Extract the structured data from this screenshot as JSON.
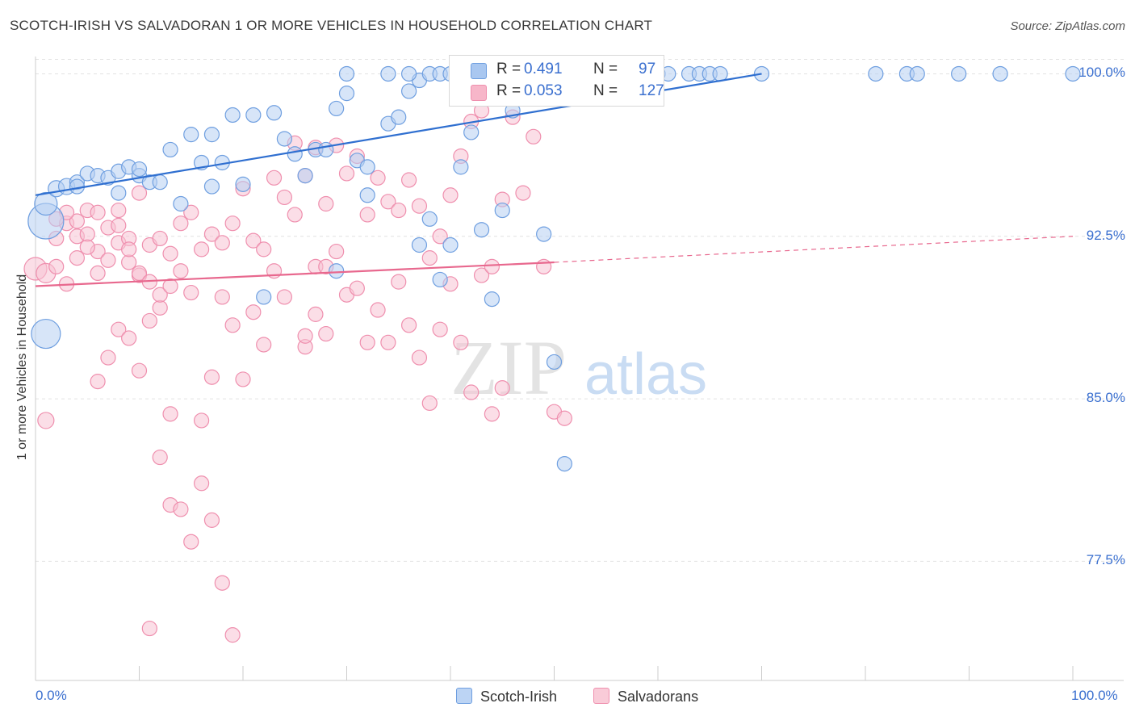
{
  "title": "SCOTCH-IRISH VS SALVADORAN 1 OR MORE VEHICLES IN HOUSEHOLD CORRELATION CHART",
  "source": "Source: ZipAtlas.com",
  "watermark": {
    "zip": "ZIP",
    "atlas": "atlas"
  },
  "legend": {
    "rows": [
      {
        "r_label": "R =",
        "r_value": "0.491",
        "n_label": "N =",
        "n_value": "97",
        "color": "#a9c7f0"
      },
      {
        "r_label": "R =",
        "r_value": "0.053",
        "n_label": "N =",
        "n_value": "127",
        "color": "#f7b6c9"
      }
    ],
    "series": [
      "Scotch-Irish",
      "Salvadorans"
    ]
  },
  "chart_data": {
    "type": "scatter",
    "title": "SCOTCH-IRISH VS SALVADORAN 1 OR MORE VEHICLES IN HOUSEHOLD CORRELATION CHART",
    "xlabel": "",
    "ylabel": "1 or more Vehicles in Household",
    "xlim": [
      0,
      100
    ],
    "ylim": [
      72.0,
      100.8
    ],
    "x_tick_labels": [
      "0.0%",
      "100.0%"
    ],
    "y_ticks": [
      77.5,
      85.0,
      92.5,
      100.0
    ],
    "y_tick_labels": [
      "77.5%",
      "85.0%",
      "92.5%",
      "100.0%"
    ],
    "grid": true,
    "legend_position": "top-center",
    "colors": {
      "scotch_irish": "#6f9fe0",
      "salvadorans": "#ef8fae",
      "scotch_irish_line": "#2f6fd0",
      "salvadorans_line": "#e8688e"
    },
    "series": [
      {
        "name": "Scotch-Irish",
        "trend": {
          "x": [
            0,
            70
          ],
          "y": [
            94.4,
            100.0
          ]
        },
        "points": [
          [
            1,
            93.2,
            22
          ],
          [
            1,
            88,
            18
          ],
          [
            1,
            94,
            14
          ],
          [
            2,
            94.7,
            10
          ],
          [
            3,
            94.8,
            10
          ],
          [
            4,
            95,
            9
          ],
          [
            4,
            94.8,
            9
          ],
          [
            5,
            95.4,
            9
          ],
          [
            6,
            95.3,
            9
          ],
          [
            7,
            95.2,
            9
          ],
          [
            8,
            95.5,
            9
          ],
          [
            8,
            94.5,
            9
          ],
          [
            9,
            95.7,
            9
          ],
          [
            10,
            95.3,
            9
          ],
          [
            10,
            95.6,
            9
          ],
          [
            11,
            95,
            9
          ],
          [
            12,
            95,
            9
          ],
          [
            13,
            96.5,
            9
          ],
          [
            14,
            94,
            9
          ],
          [
            15,
            97.2,
            9
          ],
          [
            16,
            95.9,
            9
          ],
          [
            17,
            94.8,
            9
          ],
          [
            18,
            95.9,
            9
          ],
          [
            19,
            98.1,
            9
          ],
          [
            20,
            94.9,
            9
          ],
          [
            21,
            98.1,
            9
          ],
          [
            23,
            98.2,
            9
          ],
          [
            24,
            97,
            9
          ],
          [
            25,
            96.3,
            9
          ],
          [
            26,
            95.3,
            9
          ],
          [
            27,
            96.5,
            9
          ],
          [
            28,
            96.5,
            9
          ],
          [
            29,
            98.4,
            9
          ],
          [
            30,
            99.1,
            9
          ],
          [
            31,
            96,
            9
          ],
          [
            32,
            94.4,
            9
          ],
          [
            32,
            95.7,
            9
          ],
          [
            34,
            97.7,
            9
          ],
          [
            35,
            98,
            9
          ],
          [
            36,
            99.2,
            9
          ],
          [
            37,
            99.7,
            9
          ],
          [
            37,
            92.1,
            9
          ],
          [
            38,
            93.3,
            9
          ],
          [
            39,
            90.5,
            9
          ],
          [
            40,
            92.1,
            9
          ],
          [
            41,
            95.7,
            9
          ],
          [
            42,
            97.3,
            9
          ],
          [
            43,
            92.8,
            9
          ],
          [
            44,
            89.6,
            9
          ],
          [
            45,
            93.7,
            9
          ],
          [
            46,
            98.3,
            9
          ],
          [
            47,
            99.1,
            9
          ],
          [
            49,
            92.6,
            9
          ],
          [
            50,
            86.7,
            9
          ],
          [
            51,
            82,
            9
          ],
          [
            36,
            100,
            9
          ],
          [
            22,
            89.7,
            9
          ],
          [
            17,
            97.2,
            9
          ],
          [
            29,
            90.9,
            9
          ],
          [
            30,
            100,
            9
          ],
          [
            34,
            100,
            9
          ],
          [
            38,
            100,
            9
          ],
          [
            39,
            100,
            9
          ],
          [
            40,
            100,
            9
          ],
          [
            42,
            100,
            9
          ],
          [
            47,
            100,
            9
          ],
          [
            48,
            100,
            9
          ],
          [
            50,
            100,
            9
          ],
          [
            51,
            100,
            9
          ],
          [
            52,
            100,
            9
          ],
          [
            53,
            100,
            9
          ],
          [
            54,
            100,
            9
          ],
          [
            55,
            100,
            9
          ],
          [
            56,
            100,
            9
          ],
          [
            57,
            100,
            9
          ],
          [
            59,
            100,
            9
          ],
          [
            60,
            100,
            9
          ],
          [
            61,
            100,
            9
          ],
          [
            63,
            100,
            9
          ],
          [
            64,
            100,
            9
          ],
          [
            65,
            100,
            9
          ],
          [
            66,
            100,
            9
          ],
          [
            70,
            100,
            9
          ],
          [
            81,
            100,
            9
          ],
          [
            84,
            100,
            9
          ],
          [
            85,
            100,
            9
          ],
          [
            89,
            100,
            9
          ],
          [
            93,
            100,
            9
          ],
          [
            100,
            100,
            9
          ]
        ]
      },
      {
        "name": "Salvadorans",
        "trend": {
          "x": [
            0,
            50
          ],
          "y": [
            90.2,
            91.3
          ]
        },
        "trend_dashed": {
          "x": [
            50,
            100
          ],
          "y": [
            91.3,
            92.5
          ]
        },
        "points": [
          [
            0,
            91,
            14
          ],
          [
            1,
            90.8,
            12
          ],
          [
            1,
            84,
            10
          ],
          [
            2,
            92.4,
            9
          ],
          [
            2,
            91.1,
            9
          ],
          [
            3,
            93.1,
            9
          ],
          [
            3,
            90.3,
            9
          ],
          [
            4,
            92.5,
            9
          ],
          [
            4,
            91.5,
            9
          ],
          [
            5,
            93.7,
            9
          ],
          [
            5,
            92.6,
            9
          ],
          [
            6,
            91.8,
            9
          ],
          [
            6,
            90.8,
            9
          ],
          [
            7,
            92.9,
            9
          ],
          [
            7,
            91.4,
            9
          ],
          [
            7,
            86.9,
            9
          ],
          [
            8,
            93,
            9
          ],
          [
            8,
            92.2,
            9
          ],
          [
            8,
            88.2,
            9
          ],
          [
            9,
            92.4,
            9
          ],
          [
            9,
            91.3,
            9
          ],
          [
            10,
            94.5,
            9
          ],
          [
            10,
            90.7,
            9
          ],
          [
            11,
            92.1,
            9
          ],
          [
            11,
            88.6,
            9
          ],
          [
            12,
            92.4,
            9
          ],
          [
            12,
            89.2,
            9
          ],
          [
            13,
            91.7,
            9
          ],
          [
            13,
            84.3,
            9
          ],
          [
            14,
            93.1,
            9
          ],
          [
            14,
            90.9,
            9
          ],
          [
            15,
            93.6,
            9
          ],
          [
            15,
            89.9,
            9
          ],
          [
            16,
            91.9,
            9
          ],
          [
            16,
            84,
            9
          ],
          [
            17,
            92.6,
            9
          ],
          [
            17,
            86,
            9
          ],
          [
            18,
            92.2,
            9
          ],
          [
            18,
            89.7,
            9
          ],
          [
            19,
            93.1,
            9
          ],
          [
            19,
            88.4,
            9
          ],
          [
            20,
            94.7,
            9
          ],
          [
            20,
            85.9,
            9
          ],
          [
            21,
            92.3,
            9
          ],
          [
            21,
            89,
            9
          ],
          [
            22,
            91.9,
            9
          ],
          [
            22,
            87.5,
            9
          ],
          [
            23,
            95.2,
            9
          ],
          [
            23,
            90.9,
            9
          ],
          [
            24,
            94.3,
            9
          ],
          [
            24,
            89.7,
            9
          ],
          [
            25,
            96.8,
            9
          ],
          [
            25,
            93.5,
            9
          ],
          [
            26,
            95.3,
            9
          ],
          [
            26,
            87.4,
            9
          ],
          [
            27,
            96.6,
            9
          ],
          [
            27,
            91.1,
            9
          ],
          [
            28,
            94,
            9
          ],
          [
            28,
            88,
            9
          ],
          [
            29,
            96.7,
            9
          ],
          [
            29,
            91.8,
            9
          ],
          [
            30,
            95.4,
            9
          ],
          [
            30,
            89.8,
            9
          ],
          [
            31,
            96.2,
            9
          ],
          [
            31,
            90.1,
            9
          ],
          [
            32,
            93.5,
            9
          ],
          [
            32,
            87.6,
            9
          ],
          [
            33,
            95.2,
            9
          ],
          [
            33,
            89.1,
            9
          ],
          [
            34,
            94.1,
            9
          ],
          [
            34,
            87.6,
            9
          ],
          [
            35,
            93.7,
            9
          ],
          [
            35,
            90.4,
            9
          ],
          [
            36,
            95.1,
            9
          ],
          [
            36,
            88.4,
            9
          ],
          [
            37,
            93.9,
            9
          ],
          [
            37,
            86.9,
            9
          ],
          [
            38,
            91.5,
            9
          ],
          [
            38,
            84.8,
            9
          ],
          [
            39,
            92.5,
            9
          ],
          [
            39,
            88.2,
            9
          ],
          [
            40,
            94.4,
            9
          ],
          [
            40,
            90.3,
            9
          ],
          [
            41,
            96.2,
            9
          ],
          [
            41,
            87.6,
            9
          ],
          [
            42,
            97.8,
            9
          ],
          [
            42,
            85.3,
            9
          ],
          [
            43,
            98.3,
            9
          ],
          [
            43,
            90.7,
            9
          ],
          [
            44,
            91.1,
            9
          ],
          [
            44,
            84.3,
            9
          ],
          [
            45,
            94.2,
            9
          ],
          [
            45,
            85.5,
            9
          ],
          [
            46,
            98,
            9
          ],
          [
            47,
            94.5,
            9
          ],
          [
            48,
            97.1,
            9
          ],
          [
            49,
            91.1,
            9
          ],
          [
            50,
            84.4,
            9
          ],
          [
            51,
            84.1,
            9
          ],
          [
            12,
            82.3,
            9
          ],
          [
            13,
            80.1,
            9
          ],
          [
            14,
            79.9,
            9
          ],
          [
            15,
            78.4,
            9
          ],
          [
            16,
            81.1,
            9
          ],
          [
            17,
            79.4,
            9
          ],
          [
            18,
            76.5,
            9
          ],
          [
            19,
            74.1,
            9
          ],
          [
            11,
            74.4,
            9
          ],
          [
            26,
            87.9,
            9
          ],
          [
            27,
            88.9,
            9
          ],
          [
            28,
            91.1,
            9
          ],
          [
            10,
            86.3,
            9
          ],
          [
            9,
            87.8,
            9
          ],
          [
            6,
            85.8,
            9
          ],
          [
            5,
            92,
            9
          ],
          [
            6,
            93.6,
            9
          ],
          [
            4,
            93.2,
            9
          ],
          [
            3,
            93.6,
            9
          ],
          [
            2,
            93.3,
            9
          ],
          [
            8,
            93.7,
            9
          ],
          [
            9,
            91.9,
            9
          ],
          [
            10,
            90.8,
            9
          ],
          [
            11,
            90.4,
            9
          ],
          [
            12,
            89.8,
            9
          ],
          [
            13,
            90.2,
            9
          ]
        ]
      }
    ]
  }
}
